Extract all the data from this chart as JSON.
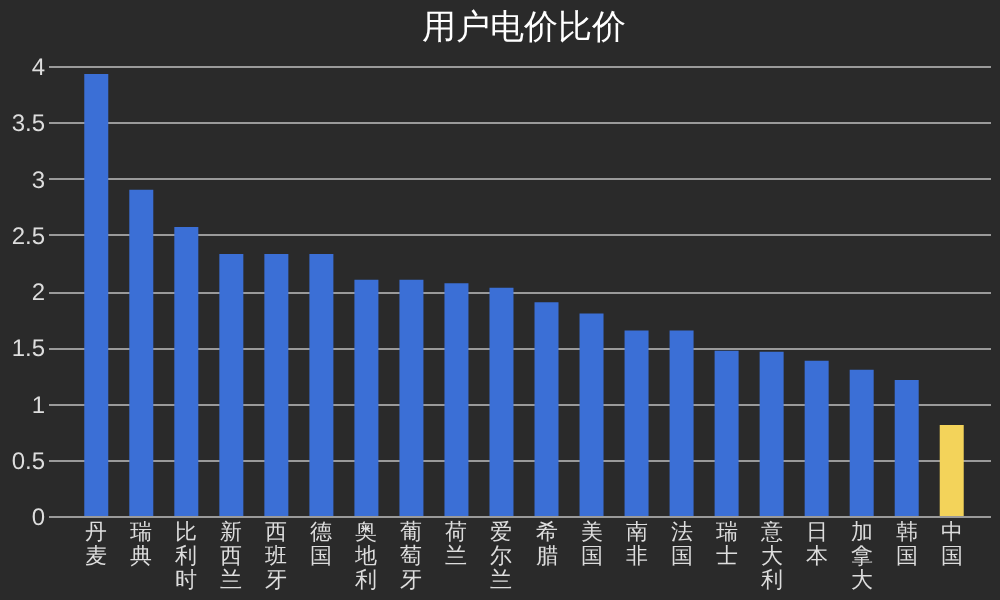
{
  "chart_data": {
    "type": "bar",
    "title": "用户电价比价",
    "categories": [
      "丹麦",
      "瑞典",
      "比利时",
      "新西兰",
      "西班牙",
      "德国",
      "奥地利",
      "葡萄牙",
      "荷兰",
      "爱尔兰",
      "希腊",
      "美国",
      "南非",
      "法国",
      "瑞士",
      "意大利",
      "日本",
      "加拿大",
      "韩国",
      "中国"
    ],
    "values": [
      3.93,
      2.9,
      2.57,
      2.33,
      2.33,
      2.33,
      2.1,
      2.1,
      2.07,
      2.03,
      1.9,
      1.8,
      1.65,
      1.65,
      1.47,
      1.46,
      1.38,
      1.3,
      1.21,
      0.81
    ],
    "colors": [
      "#3b6fd6",
      "#3b6fd6",
      "#3b6fd6",
      "#3b6fd6",
      "#3b6fd6",
      "#3b6fd6",
      "#3b6fd6",
      "#3b6fd6",
      "#3b6fd6",
      "#3b6fd6",
      "#3b6fd6",
      "#3b6fd6",
      "#3b6fd6",
      "#3b6fd6",
      "#3b6fd6",
      "#3b6fd6",
      "#3b6fd6",
      "#3b6fd6",
      "#3b6fd6",
      "#f3d35a"
    ],
    "ylim": [
      0,
      4
    ],
    "yticks": [
      0,
      0.5,
      1,
      1.5,
      2,
      2.5,
      3,
      3.5,
      4
    ],
    "grid": "y"
  }
}
